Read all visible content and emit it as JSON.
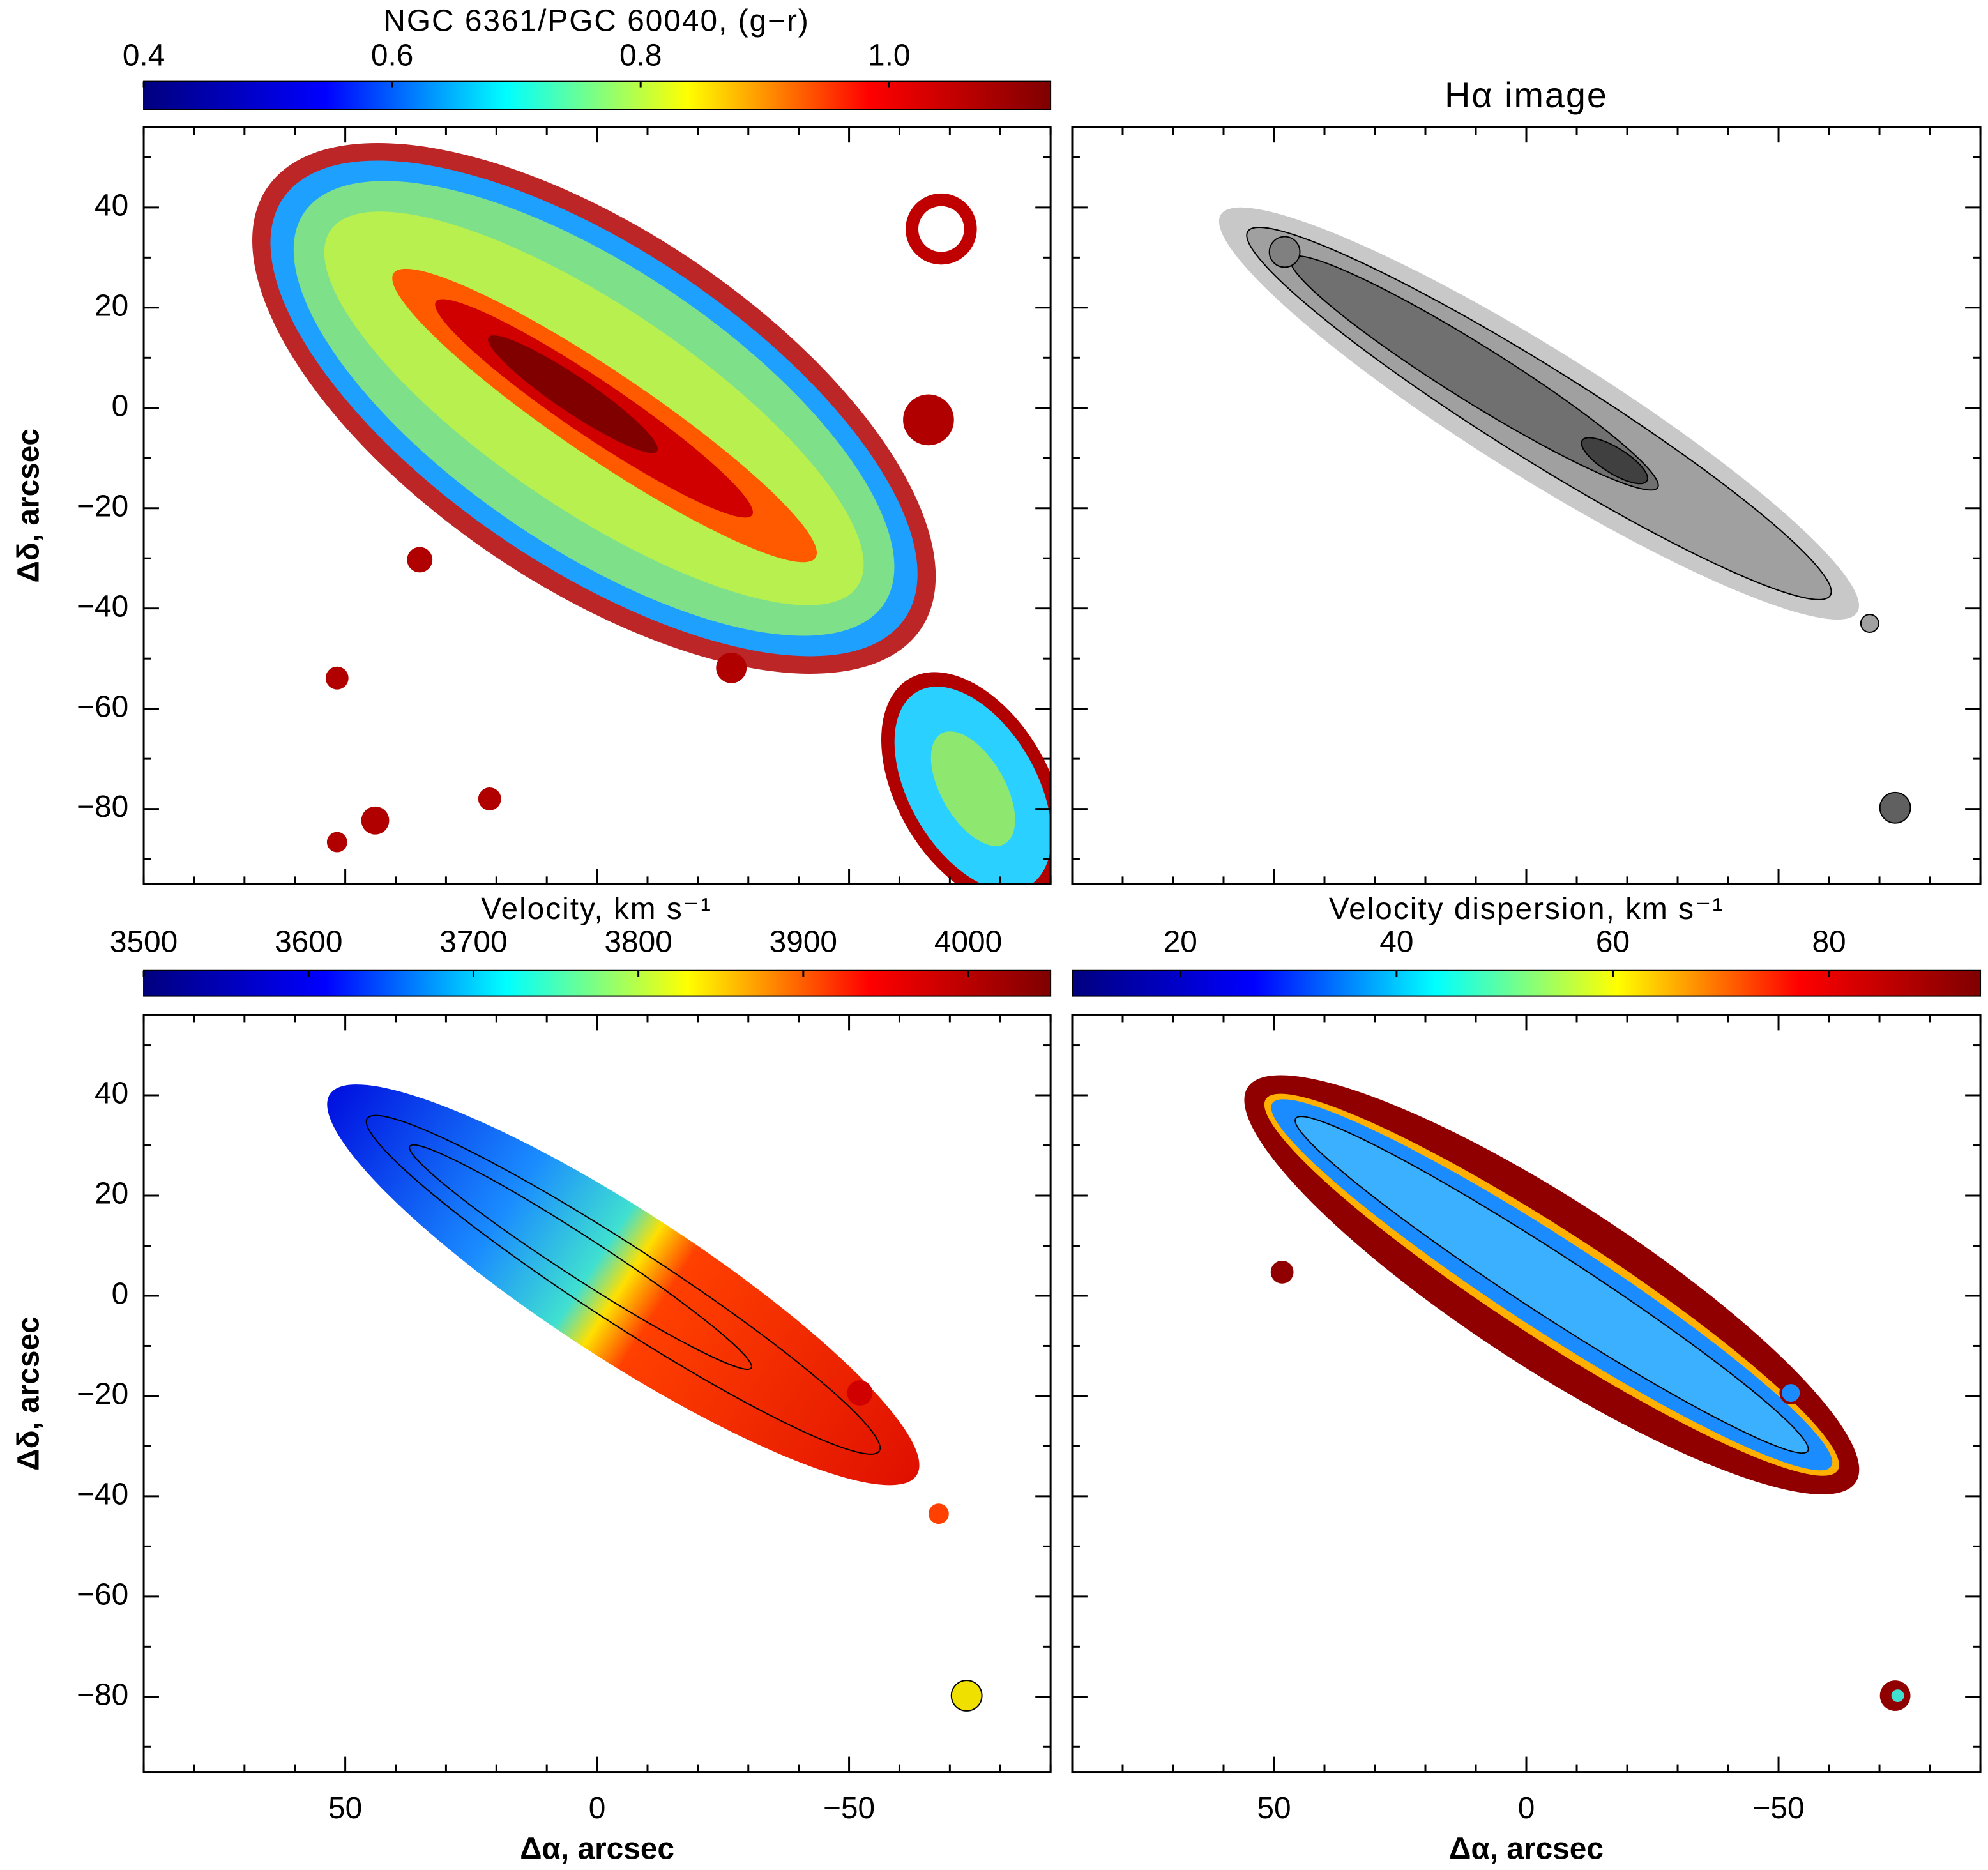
{
  "chart_data": [
    {
      "type": "image",
      "title": "NGC 6361/PGC 60040, (g−r)",
      "colorbar": {
        "lim": [
          0.4,
          1.13
        ],
        "ticks": [
          0.4,
          0.6,
          0.8,
          {
            "value": 1,
            "label": "1.0"
          }
        ],
        "colormap": [
          "#00007f",
          "#0000ff",
          "#00ffff",
          "#ffff00",
          "#ff0000",
          "#7f0000"
        ]
      },
      "xlim": [
        90,
        -90
      ],
      "ylim": [
        -95,
        56
      ],
      "xticks": [
        50,
        0,
        {
          "value": -50,
          "label": "−50"
        }
      ],
      "yticks": [
        {
          "value": -80,
          "label": "−80"
        },
        {
          "value": -60,
          "label": "−60"
        },
        {
          "value": -40,
          "label": "−40"
        },
        {
          "value": -20,
          "label": "−20"
        },
        0,
        20,
        40
      ],
      "minor_tick_step": 10,
      "ylabel": "Δδ, arcsec"
    },
    {
      "type": "image",
      "title": "Hα image",
      "xlim": [
        90,
        -90
      ],
      "ylim": [
        -95,
        56
      ],
      "xticks": [
        50,
        0,
        {
          "value": -50,
          "label": "−50"
        }
      ],
      "yticks": [
        {
          "value": -80,
          "label": "−80"
        },
        {
          "value": -60,
          "label": "−60"
        },
        {
          "value": -40,
          "label": "−40"
        },
        {
          "value": -20,
          "label": "−20"
        },
        0,
        20,
        40
      ],
      "minor_tick_step": 10
    },
    {
      "type": "image",
      "title": "Velocity, km s⁻¹",
      "colorbar": {
        "lim": [
          3500,
          4050
        ],
        "ticks": [
          3500,
          3600,
          3700,
          3800,
          3900,
          4000
        ],
        "colormap": [
          "#00007f",
          "#0000ff",
          "#00ffff",
          "#ffff00",
          "#ff0000",
          "#7f0000"
        ]
      },
      "xlim": [
        90,
        -90
      ],
      "ylim": [
        -95,
        56
      ],
      "xticks": [
        50,
        0,
        {
          "value": -50,
          "label": "−50"
        }
      ],
      "yticks": [
        {
          "value": -80,
          "label": "−80"
        },
        {
          "value": -60,
          "label": "−60"
        },
        {
          "value": -40,
          "label": "−40"
        },
        {
          "value": -20,
          "label": "−20"
        },
        0,
        20,
        40
      ],
      "minor_tick_step": 10,
      "xlabel": "Δα, arcsec",
      "ylabel": "Δδ, arcsec"
    },
    {
      "type": "image",
      "title": "Velocity dispersion, km s⁻¹",
      "colorbar": {
        "lim": [
          10,
          94
        ],
        "ticks": [
          20,
          40,
          60,
          80
        ],
        "colormap": [
          "#00007f",
          "#0000ff",
          "#00ffff",
          "#ffff00",
          "#ff0000",
          "#7f0000"
        ]
      },
      "xlim": [
        90,
        -90
      ],
      "ylim": [
        -95,
        56
      ],
      "xticks": [
        50,
        0,
        {
          "value": -50,
          "label": "−50"
        }
      ],
      "yticks": [
        {
          "value": -80,
          "label": "−80"
        },
        {
          "value": -60,
          "label": "−60"
        },
        {
          "value": -40,
          "label": "−40"
        },
        {
          "value": -20,
          "label": "−20"
        },
        0,
        20,
        40
      ],
      "minor_tick_step": 10,
      "xlabel": "Δα, arcsec"
    }
  ]
}
